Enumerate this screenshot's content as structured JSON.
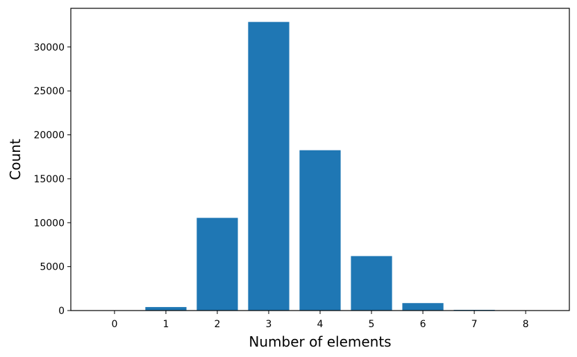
{
  "chart_data": {
    "type": "bar",
    "title": "",
    "xlabel": "Number of elements",
    "ylabel": "Count",
    "categories": [
      "0",
      "1",
      "2",
      "3",
      "4",
      "5",
      "6",
      "7",
      "8"
    ],
    "x": [
      0,
      1,
      2,
      3,
      4,
      5,
      6,
      7,
      8
    ],
    "values": [
      10,
      400,
      10550,
      32850,
      18250,
      6200,
      850,
      80,
      10
    ],
    "xlim": [
      -0.85,
      8.85
    ],
    "ylim": [
      0,
      34400
    ],
    "yticks": [
      0,
      5000,
      10000,
      15000,
      20000,
      25000,
      30000
    ],
    "ytick_labels": [
      "0",
      "5000",
      "10000",
      "15000",
      "20000",
      "25000",
      "30000"
    ],
    "bar_color": "#1f77b4",
    "grid": false,
    "legend": "none"
  }
}
